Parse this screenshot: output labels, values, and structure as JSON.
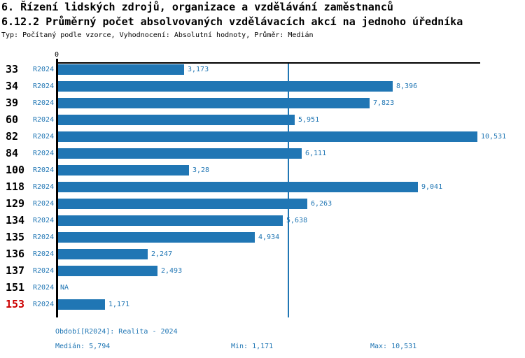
{
  "header": {
    "title_line1": "6. Řízení lidských zdrojů, organizace a vzdělávání zaměstnanců",
    "title_line2": "6.12.2 Průměrný počet absolvovaných vzdělávacích akcí na jednoho úředníka",
    "meta_line": "Typ: Počítaný podle vzorce, Vyhodnocení: Absolutní hodnoty, Průměr: Medián"
  },
  "colors": {
    "bar": "#2076b4",
    "blue_text": "#2076b4",
    "highlight": "#cc0000",
    "axis": "#000000"
  },
  "axis": {
    "zero_label": "0"
  },
  "chart_data": {
    "type": "bar",
    "orientation": "horizontal",
    "title": "6.12.2 Průměrný počet absolvovaných vzdělávacích akcí na jednoho úředníka",
    "period_label": "R2024",
    "categories": [
      "33",
      "34",
      "39",
      "60",
      "82",
      "84",
      "100",
      "118",
      "129",
      "134",
      "135",
      "136",
      "137",
      "151",
      "153"
    ],
    "values": [
      3.173,
      8.396,
      7.823,
      5.951,
      10.531,
      6.111,
      3.28,
      9.041,
      6.263,
      5.638,
      4.934,
      2.247,
      2.493,
      null,
      1.171
    ],
    "value_labels": [
      "3,173",
      "8,396",
      "7,823",
      "5,951",
      "10,531",
      "6,111",
      "3,28",
      "9,041",
      "6,263",
      "5,638",
      "4,934",
      "2,247",
      "2,493",
      "NA",
      "1,171"
    ],
    "highlighted_categories": [
      "153"
    ],
    "xlim": [
      0,
      10.531
    ],
    "median_line_value": 5.794,
    "grid": false,
    "legend": false
  },
  "footer": {
    "period": "Období[R2024]: Realita - 2024",
    "median": "Medián: 5,794",
    "min": "Min: 1,171",
    "max": "Max: 10,531"
  }
}
